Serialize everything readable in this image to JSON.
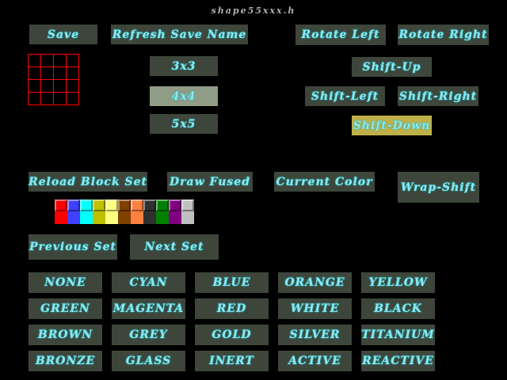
{
  "title": "shape55xxx.h",
  "buttons": {
    "save": "Save",
    "refresh": "Refresh Save Name",
    "rotate_left": "Rotate Left",
    "rotate_right": "Rotate Right",
    "size3": "3x3",
    "size4": "4x4",
    "size5": "5x5",
    "shift_up": "Shift-Up",
    "shift_left": "Shift-Left",
    "shift_right": "Shift-Right",
    "shift_down": "Shift-Down",
    "reload": "Reload Block Set",
    "draw_fused": "Draw Fused",
    "current_color": "Current Color",
    "wrap_shift": "Wrap-Shift",
    "prev": "Previous Set",
    "next": "Next Set"
  },
  "selected_size": "4x4",
  "palette": [
    "#ff0000",
    "#4040ff",
    "#00ffff",
    "#c0c000",
    "#ffff80",
    "#804000",
    "#ff8040",
    "#303030",
    "#008000",
    "#800080",
    "#c0c0c0"
  ],
  "materials": [
    "NONE",
    "CYAN",
    "BLUE",
    "ORANGE",
    "YELLOW",
    "GREEN",
    "MAGENTA",
    "RED",
    "WHITE",
    "BLACK",
    "BROWN",
    "GREY",
    "GOLD",
    "SILVER",
    "TITANIUM",
    "BRONZE",
    "GLASS",
    "INERT",
    "ACTIVE",
    "REACTIVE"
  ]
}
